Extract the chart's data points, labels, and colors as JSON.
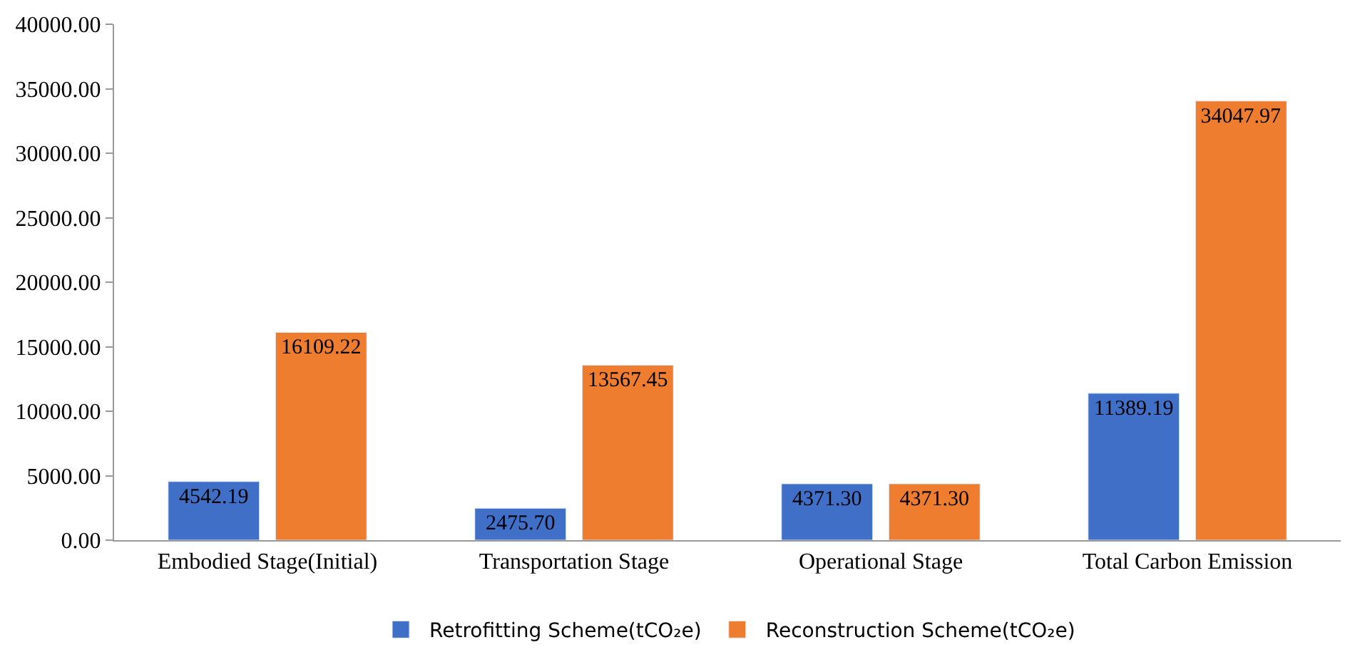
{
  "chart_data": {
    "type": "bar",
    "categories": [
      "Embodied Stage(Initial)",
      "Transportation Stage",
      "Operational Stage",
      "Total Carbon Emission"
    ],
    "series": [
      {
        "name": "Retrofitting Scheme(tCO₂e)",
        "color": "#3f6fc6",
        "values": [
          4542.19,
          2475.7,
          4371.3,
          11389.19
        ]
      },
      {
        "name": "Reconstruction Scheme(tCO₂e)",
        "color": "#ef7d30",
        "values": [
          16109.22,
          13567.45,
          4371.3,
          34047.97
        ]
      }
    ],
    "value_labels": [
      [
        "4542.19",
        "2475.70",
        "4371.30",
        "11389.19"
      ],
      [
        "16109.22",
        "13567.45",
        "4371.30",
        "34047.97"
      ]
    ],
    "ylim": [
      0,
      40000
    ],
    "yticks": [
      {
        "value": 0,
        "label": "0.00"
      },
      {
        "value": 5000,
        "label": "5000.00"
      },
      {
        "value": 10000,
        "label": "10000.00"
      },
      {
        "value": 15000,
        "label": "15000.00"
      },
      {
        "value": 20000,
        "label": "20000.00"
      },
      {
        "value": 25000,
        "label": "25000.00"
      },
      {
        "value": 30000,
        "label": "30000.00"
      },
      {
        "value": 35000,
        "label": "35000.00"
      },
      {
        "value": 40000,
        "label": "40000.00"
      }
    ],
    "legend": "bottom"
  }
}
